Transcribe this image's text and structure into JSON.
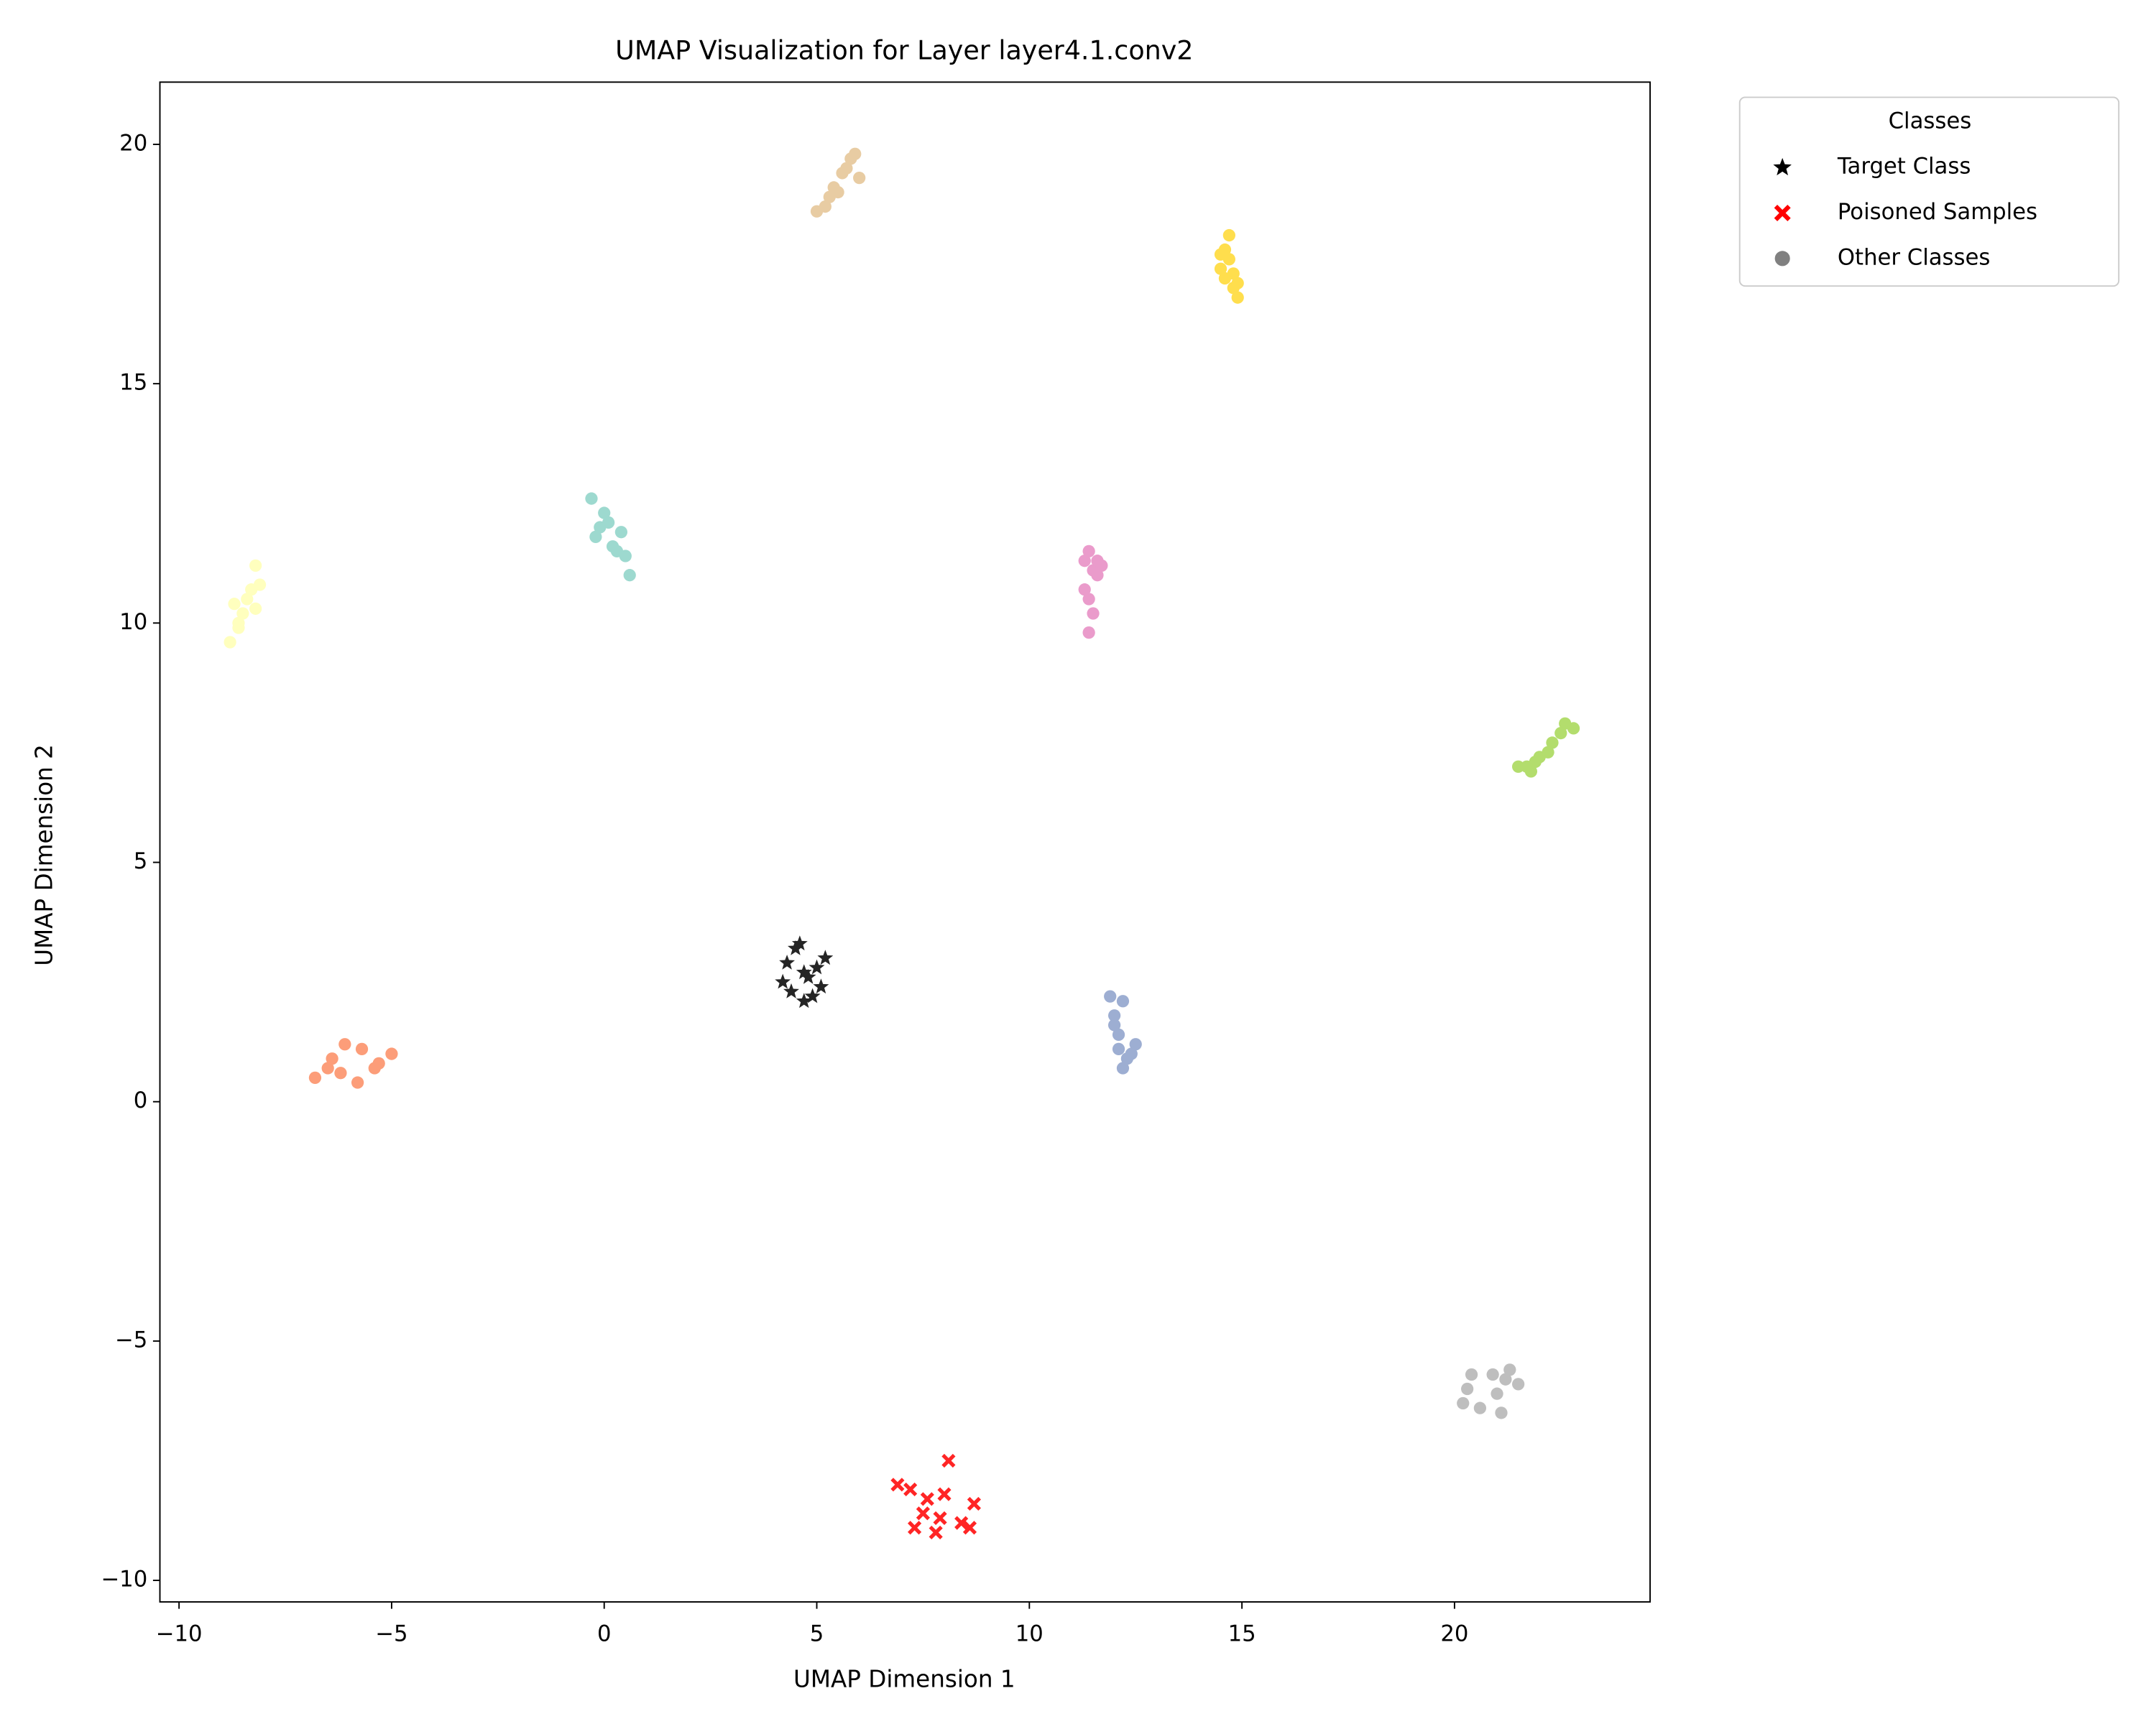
{
  "chart_data": {
    "type": "scatter",
    "title": "UMAP Visualization for Layer layer4.1.conv2",
    "x_label": "UMAP Dimension 1",
    "y_label": "UMAP Dimension 2",
    "xlim": [
      -10.45,
      24.6
    ],
    "ylim": [
      -10.45,
      21.3
    ],
    "xticks": [
      {
        "value": -10,
        "label": "−10"
      },
      {
        "value": -5,
        "label": "−5"
      },
      0,
      5,
      10,
      15,
      20
    ],
    "yticks": [
      {
        "value": -10,
        "label": "−10"
      },
      {
        "value": -5,
        "label": "−5"
      },
      0,
      5,
      10,
      15,
      20
    ],
    "grid": false,
    "legend": "outside upper right",
    "legend_title": "Classes",
    "series": [
      {
        "name": "Target Class",
        "color": "#000000",
        "marker": "star",
        "x": [
          4.2,
          4.5,
          4.7,
          5.0,
          5.2,
          4.4,
          4.8,
          4.6,
          5.1,
          4.3,
          4.9,
          4.7
        ],
        "y": [
          2.5,
          3.2,
          2.1,
          2.8,
          3.0,
          2.3,
          2.6,
          3.3,
          2.4,
          2.9,
          2.2,
          2.7
        ]
      },
      {
        "name": "Poisoned Samples",
        "color": "#ff0000",
        "marker": "x",
        "x": [
          6.9,
          7.3,
          7.6,
          7.9,
          8.1,
          8.4,
          8.7,
          7.8,
          8.0,
          7.5,
          8.6,
          7.2
        ],
        "y": [
          -8.0,
          -8.9,
          -8.3,
          -8.7,
          -7.5,
          -8.8,
          -8.4,
          -9.0,
          -8.2,
          -8.6,
          -8.9,
          -8.1
        ]
      },
      {
        "name": "Other Classes",
        "color": "#808080",
        "marker": "circle",
        "clusters": [
          {
            "color": "#e5c494",
            "x": [
              5.0,
              5.3,
              5.6,
              5.8,
              5.9,
              5.4,
              5.7,
              5.2,
              5.5,
              6.0
            ],
            "y": [
              18.6,
              18.9,
              19.4,
              19.7,
              19.8,
              19.1,
              19.5,
              18.7,
              19.0,
              19.3
            ]
          },
          {
            "color": "#ffd92f",
            "x": [
              14.5,
              14.6,
              14.7,
              14.8,
              14.9,
              14.6,
              14.8,
              14.7,
              14.5,
              14.9
            ],
            "y": [
              17.4,
              17.8,
              18.1,
              17.0,
              16.8,
              17.2,
              17.3,
              17.6,
              17.7,
              17.1
            ]
          },
          {
            "color": "#8dd3c7",
            "x": [
              -0.3,
              -0.1,
              0.0,
              0.2,
              0.4,
              0.6,
              0.5,
              -0.2,
              0.1,
              0.3
            ],
            "y": [
              12.6,
              12.0,
              12.3,
              11.6,
              11.9,
              11.0,
              11.4,
              11.8,
              12.1,
              11.5
            ]
          },
          {
            "color": "#ffffb3",
            "x": [
              -8.8,
              -8.6,
              -8.4,
              -8.2,
              -8.1,
              -8.5,
              -8.3,
              -8.7,
              -8.2,
              -8.6
            ],
            "y": [
              9.6,
              10.0,
              10.5,
              11.2,
              10.8,
              10.2,
              10.7,
              10.4,
              10.3,
              9.9
            ]
          },
          {
            "color": "#e78ac3",
            "x": [
              11.3,
              11.4,
              11.5,
              11.6,
              11.7,
              11.4,
              11.5,
              11.3,
              11.6,
              11.4
            ],
            "y": [
              11.3,
              11.5,
              11.1,
              11.3,
              11.2,
              10.5,
              10.2,
              10.7,
              11.0,
              9.8
            ]
          },
          {
            "color": "#a6d854",
            "x": [
              21.5,
              21.8,
              22.0,
              22.3,
              22.6,
              22.8,
              22.2,
              21.9,
              22.5,
              21.7
            ],
            "y": [
              7.0,
              6.9,
              7.2,
              7.5,
              7.9,
              7.8,
              7.3,
              7.1,
              7.7,
              7.0
            ]
          },
          {
            "color": "#fc8d62",
            "x": [
              -6.8,
              -6.4,
              -6.1,
              -5.8,
              -5.4,
              -5.0,
              -5.3,
              -6.2,
              -5.7,
              -6.5
            ],
            "y": [
              0.5,
              0.9,
              1.2,
              0.4,
              0.7,
              1.0,
              0.8,
              0.6,
              1.1,
              0.7
            ]
          },
          {
            "color": "#8da0cb",
            "x": [
              11.9,
              12.0,
              12.1,
              12.2,
              12.4,
              12.5,
              12.3,
              12.0,
              12.2,
              12.1
            ],
            "y": [
              2.2,
              1.8,
              1.4,
              0.7,
              1.0,
              1.2,
              0.9,
              1.6,
              2.1,
              1.1
            ]
          },
          {
            "color": "#b3b3b3",
            "x": [
              20.2,
              20.4,
              20.6,
              20.9,
              21.1,
              21.3,
              21.5,
              21.0,
              20.3,
              21.2
            ],
            "y": [
              -6.3,
              -5.7,
              -6.4,
              -5.7,
              -6.5,
              -5.6,
              -5.9,
              -6.1,
              -6.0,
              -5.8
            ]
          }
        ]
      }
    ]
  }
}
